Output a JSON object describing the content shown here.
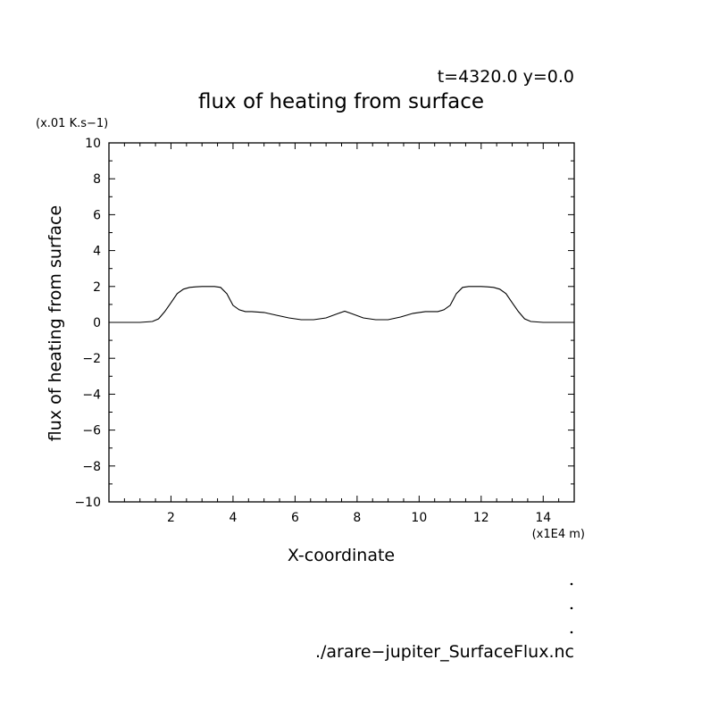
{
  "chart_data": {
    "type": "line",
    "title": "flux of heating from surface",
    "subtitle": "t=4320.0 y=0.0",
    "xlabel": "X-coordinate",
    "ylabel": "flux of heating from surface",
    "x_unit": "(x1E4 m)",
    "y_unit": "(x.01 K.s−1)",
    "xlim": [
      0,
      15
    ],
    "ylim": [
      -10,
      10
    ],
    "x_ticks": [
      2,
      4,
      6,
      8,
      10,
      12,
      14
    ],
    "x_tick_labels": [
      "2",
      "4",
      "6",
      "8",
      "10",
      "12",
      "14"
    ],
    "y_ticks": [
      -10,
      -8,
      -6,
      -4,
      -2,
      0,
      2,
      4,
      6,
      8,
      10
    ],
    "y_tick_labels": [
      "−10",
      "−8",
      "−6",
      "−4",
      "−2",
      "0",
      "2",
      "4",
      "6",
      "8",
      "10"
    ],
    "grid": false,
    "series": [
      {
        "x": [
          0,
          0.5,
          1.0,
          1.4,
          1.6,
          1.8,
          2.0,
          2.2,
          2.4,
          2.6,
          2.8,
          3.0,
          3.2,
          3.4,
          3.6,
          3.8,
          4.0,
          4.2,
          4.4,
          4.6,
          5.0,
          5.4,
          5.8,
          6.2,
          6.6,
          7.0,
          7.4,
          7.6,
          7.8,
          8.2,
          8.6,
          9.0,
          9.4,
          9.8,
          10.2,
          10.6,
          10.8,
          11.0,
          11.2,
          11.4,
          11.6,
          11.8,
          12.0,
          12.2,
          12.4,
          12.6,
          12.8,
          13.0,
          13.2,
          13.4,
          13.6,
          14.0,
          14.5,
          15.0
        ],
        "y": [
          0,
          0,
          0,
          0.05,
          0.2,
          0.6,
          1.1,
          1.6,
          1.85,
          1.95,
          1.98,
          2.0,
          2.0,
          2.0,
          1.95,
          1.6,
          0.95,
          0.7,
          0.6,
          0.6,
          0.55,
          0.4,
          0.25,
          0.15,
          0.15,
          0.25,
          0.5,
          0.62,
          0.5,
          0.25,
          0.15,
          0.15,
          0.3,
          0.5,
          0.6,
          0.6,
          0.7,
          0.95,
          1.6,
          1.95,
          2.0,
          2.0,
          2.0,
          1.98,
          1.95,
          1.85,
          1.6,
          1.1,
          0.6,
          0.2,
          0.05,
          0,
          0,
          0
        ]
      }
    ]
  },
  "footer": {
    "filename": "./arare−jupiter_SurfaceFlux.nc"
  }
}
